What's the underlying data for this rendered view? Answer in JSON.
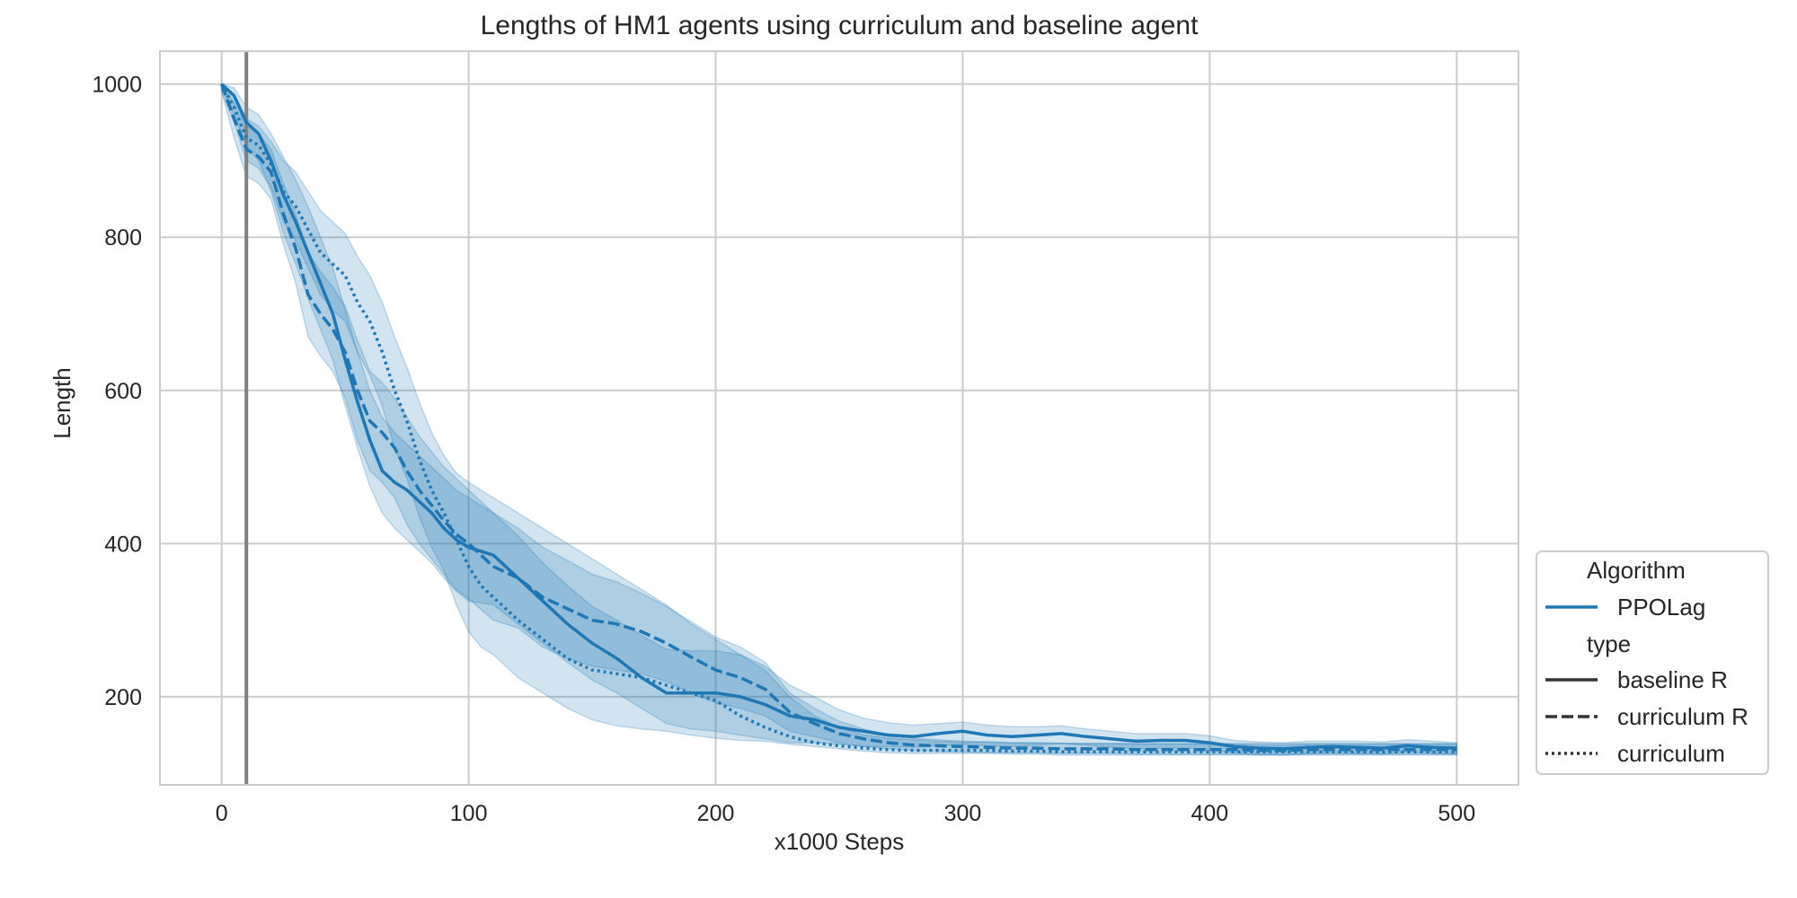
{
  "chart_data": {
    "type": "line",
    "title": "Lengths of HM1 agents using curriculum and baseline agent",
    "xlabel": "x1000 Steps",
    "ylabel": "Length",
    "xlim": [
      -25,
      525
    ],
    "ylim": [
      85,
      1043
    ],
    "xticks": [
      0,
      100,
      200,
      300,
      400,
      500
    ],
    "yticks": [
      200,
      400,
      600,
      800,
      1000
    ],
    "grid": true,
    "vline_x": 10,
    "color": "#1f77b4",
    "legend": {
      "placement": "lower-right outside",
      "hue_title": "Algorithm",
      "hue_entries": [
        "PPOLag"
      ],
      "style_title": "type",
      "style_entries": [
        "baseline R",
        "curriculum R",
        "curriculum"
      ]
    },
    "series": [
      {
        "name": "baseline R",
        "dash": "solid",
        "x": [
          0,
          5,
          10,
          15,
          20,
          25,
          30,
          35,
          40,
          45,
          50,
          55,
          60,
          65,
          70,
          75,
          80,
          85,
          90,
          95,
          100,
          110,
          120,
          130,
          140,
          150,
          160,
          170,
          180,
          190,
          200,
          210,
          220,
          230,
          240,
          250,
          260,
          270,
          280,
          290,
          300,
          310,
          320,
          330,
          340,
          350,
          360,
          370,
          380,
          390,
          400,
          410,
          420,
          430,
          440,
          450,
          460,
          470,
          480,
          490,
          500
        ],
        "y": [
          1000,
          985,
          950,
          935,
          900,
          855,
          820,
          780,
          740,
          700,
          640,
          585,
          535,
          495,
          480,
          470,
          455,
          440,
          420,
          405,
          395,
          385,
          355,
          325,
          295,
          270,
          250,
          225,
          205,
          205,
          205,
          200,
          190,
          175,
          170,
          160,
          155,
          150,
          148,
          152,
          155,
          150,
          148,
          150,
          152,
          148,
          145,
          142,
          143,
          143,
          140,
          135,
          133,
          132,
          134,
          135,
          134,
          133,
          136,
          134,
          133
        ],
        "upper": [
          1000,
          995,
          970,
          960,
          935,
          905,
          875,
          840,
          800,
          760,
          705,
          650,
          600,
          565,
          545,
          530,
          515,
          500,
          485,
          470,
          460,
          440,
          410,
          375,
          345,
          318,
          300,
          280,
          262,
          260,
          260,
          255,
          240,
          215,
          200,
          183,
          172,
          166,
          163,
          165,
          167,
          163,
          161,
          161,
          162,
          158,
          155,
          152,
          152,
          152,
          149,
          143,
          141,
          140,
          142,
          142,
          142,
          141,
          144,
          142,
          140
        ],
        "lower": [
          995,
          960,
          920,
          900,
          860,
          805,
          765,
          720,
          680,
          640,
          580,
          525,
          475,
          440,
          420,
          405,
          390,
          375,
          355,
          338,
          325,
          320,
          295,
          270,
          245,
          222,
          205,
          185,
          165,
          158,
          155,
          150,
          145,
          140,
          140,
          138,
          135,
          135,
          134,
          136,
          138,
          136,
          135,
          137,
          139,
          137,
          134,
          132,
          133,
          133,
          131,
          127,
          125,
          124,
          126,
          127,
          126,
          125,
          128,
          126,
          125
        ]
      },
      {
        "name": "curriculum R",
        "dash": "dashed",
        "x": [
          0,
          5,
          10,
          15,
          20,
          25,
          30,
          35,
          40,
          45,
          50,
          55,
          60,
          65,
          70,
          75,
          80,
          85,
          90,
          95,
          100,
          110,
          120,
          130,
          140,
          150,
          160,
          170,
          180,
          190,
          200,
          210,
          220,
          230,
          240,
          250,
          260,
          270,
          280,
          290,
          300,
          310,
          320,
          330,
          340,
          350,
          360,
          370,
          380,
          390,
          400,
          410,
          420,
          430,
          440,
          450,
          460,
          470,
          480,
          490,
          500
        ],
        "y": [
          1000,
          955,
          915,
          905,
          885,
          830,
          785,
          725,
          700,
          680,
          650,
          600,
          560,
          545,
          525,
          495,
          470,
          450,
          430,
          412,
          400,
          370,
          355,
          330,
          315,
          300,
          295,
          285,
          270,
          252,
          235,
          225,
          210,
          180,
          165,
          152,
          145,
          140,
          137,
          136,
          135,
          134,
          133,
          133,
          132,
          132,
          132,
          131,
          131,
          131,
          131,
          131,
          130,
          130,
          131,
          131,
          131,
          131,
          131,
          131,
          131
        ],
        "upper": [
          1000,
          975,
          945,
          935,
          915,
          870,
          830,
          780,
          755,
          735,
          710,
          665,
          625,
          610,
          590,
          565,
          540,
          520,
          500,
          485,
          470,
          440,
          420,
          395,
          378,
          360,
          350,
          335,
          318,
          298,
          278,
          265,
          245,
          205,
          185,
          168,
          158,
          150,
          146,
          144,
          142,
          141,
          140,
          140,
          139,
          139,
          139,
          138,
          138,
          138,
          138,
          138,
          137,
          137,
          138,
          138,
          138,
          138,
          138,
          138,
          138
        ],
        "lower": [
          990,
          930,
          880,
          870,
          850,
          790,
          740,
          670,
          645,
          625,
          590,
          535,
          495,
          480,
          460,
          425,
          400,
          380,
          360,
          340,
          328,
          300,
          290,
          265,
          250,
          240,
          235,
          230,
          220,
          205,
          192,
          185,
          175,
          155,
          148,
          140,
          135,
          132,
          130,
          129,
          128,
          127,
          127,
          127,
          126,
          126,
          126,
          125,
          125,
          125,
          125,
          125,
          124,
          124,
          125,
          125,
          125,
          125,
          125,
          125,
          125
        ]
      },
      {
        "name": "curriculum",
        "dash": "dotted",
        "x": [
          0,
          5,
          10,
          15,
          20,
          25,
          30,
          35,
          40,
          45,
          50,
          55,
          60,
          65,
          70,
          75,
          80,
          85,
          90,
          95,
          100,
          105,
          110,
          115,
          120,
          130,
          140,
          150,
          160,
          170,
          180,
          190,
          200,
          210,
          220,
          230,
          240,
          250,
          260,
          270,
          280,
          290,
          300,
          310,
          320,
          330,
          340,
          350,
          360,
          370,
          380,
          390,
          400,
          410,
          420,
          430,
          440,
          450,
          460,
          470,
          480,
          490,
          500
        ],
        "y": [
          1000,
          970,
          930,
          920,
          895,
          860,
          840,
          810,
          780,
          765,
          750,
          715,
          690,
          650,
          600,
          560,
          510,
          470,
          440,
          405,
          370,
          345,
          330,
          315,
          300,
          275,
          250,
          235,
          230,
          225,
          215,
          205,
          195,
          175,
          160,
          148,
          140,
          136,
          133,
          131,
          130,
          130,
          130,
          130,
          129,
          129,
          128,
          128,
          128,
          128,
          128,
          128,
          128,
          128,
          128,
          128,
          128,
          128,
          128,
          128,
          128,
          128,
          128
        ],
        "upper": [
          1000,
          985,
          955,
          945,
          925,
          900,
          885,
          860,
          835,
          820,
          805,
          775,
          750,
          715,
          670,
          630,
          585,
          545,
          515,
          492,
          480,
          470,
          460,
          450,
          440,
          420,
          400,
          380,
          360,
          340,
          320,
          295,
          275,
          255,
          235,
          200,
          175,
          160,
          150,
          146,
          144,
          142,
          141,
          141,
          140,
          140,
          139,
          139,
          139,
          139,
          139,
          139,
          139,
          139,
          139,
          139,
          139,
          139,
          139,
          139,
          139,
          139,
          139
        ],
        "lower": [
          990,
          950,
          900,
          890,
          865,
          820,
          795,
          760,
          725,
          705,
          690,
          650,
          620,
          580,
          525,
          485,
          435,
          395,
          365,
          320,
          285,
          265,
          255,
          240,
          225,
          205,
          185,
          170,
          162,
          158,
          155,
          150,
          146,
          143,
          142,
          138,
          135,
          132,
          129,
          127,
          126,
          126,
          126,
          126,
          125,
          125,
          124,
          124,
          124,
          124,
          124,
          124,
          124,
          124,
          124,
          124,
          124,
          124,
          124,
          124,
          124,
          124,
          124
        ]
      }
    ]
  }
}
